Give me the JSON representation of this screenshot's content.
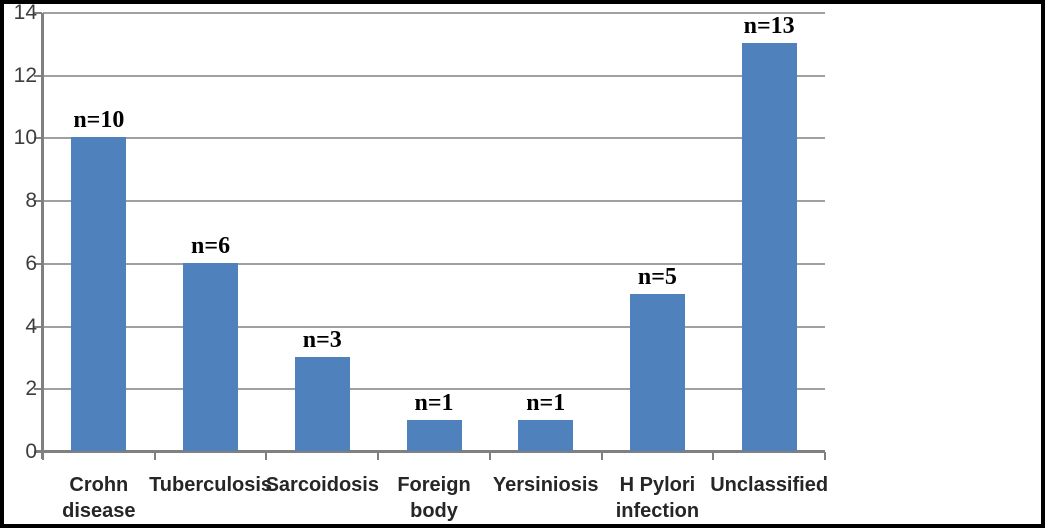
{
  "figure": {
    "background_color": "#ffffff",
    "frame_color": "#000000"
  },
  "chart_data": {
    "type": "bar",
    "title": "",
    "xlabel": "",
    "ylabel": "",
    "categories": [
      "Crohn\ndisease",
      "Tuberculosis",
      "Sarcoidosis",
      "Foreign\nbody",
      "Yersiniosis",
      "H Pylori\ninfection",
      "Unclassified"
    ],
    "values": [
      10,
      6,
      3,
      1,
      1,
      5,
      13
    ],
    "data_labels": [
      "n=10",
      "n=6",
      "n=3",
      "n=1",
      "n=1",
      "n=5",
      "n=13"
    ],
    "ylim": [
      0,
      14
    ],
    "ytick_step": 2,
    "ytick_labels": [
      "0",
      "2",
      "4",
      "6",
      "8",
      "10",
      "12",
      "14"
    ],
    "grid": true,
    "legend": false,
    "colors": {
      "bar_fill": "#4F81BD",
      "gridline": "#a0a0a0",
      "axis_line": "#808080",
      "tick_mark": "#808080",
      "y_tick_label_text": "#3d3d3d",
      "category_label_text": "#262626",
      "data_label_text": "#000000"
    }
  }
}
